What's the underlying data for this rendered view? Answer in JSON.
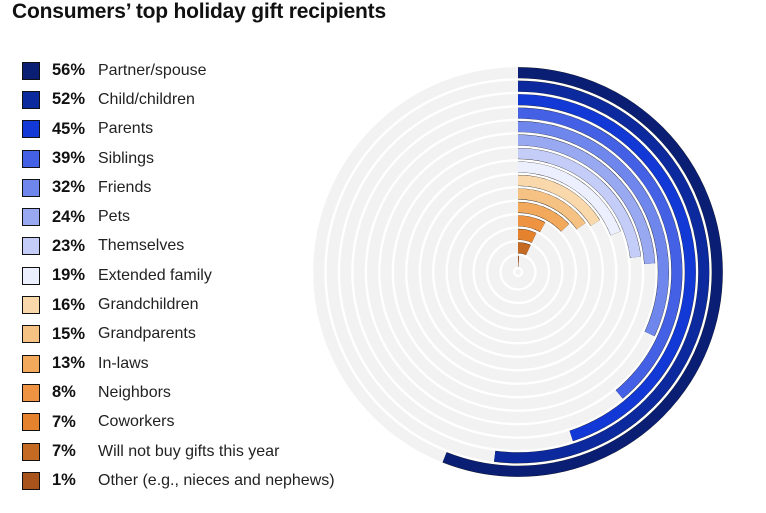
{
  "chart_data": {
    "type": "radial-bar",
    "title": "Consumers’ top holiday gift recipients",
    "max_value": 100,
    "series": [
      {
        "label": "Partner/spouse",
        "value": 56,
        "value_label": "56%",
        "color": "#0a1f73"
      },
      {
        "label": "Child/children",
        "value": 52,
        "value_label": "52%",
        "color": "#0c2a9e"
      },
      {
        "label": "Parents",
        "value": 45,
        "value_label": "45%",
        "color": "#1238d6"
      },
      {
        "label": "Siblings",
        "value": 39,
        "value_label": "39%",
        "color": "#4461e6"
      },
      {
        "label": "Friends",
        "value": 32,
        "value_label": "32%",
        "color": "#6f87ec"
      },
      {
        "label": "Pets",
        "value": 24,
        "value_label": "24%",
        "color": "#98a9f1"
      },
      {
        "label": "Themselves",
        "value": 23,
        "value_label": "23%",
        "color": "#c3cdf7"
      },
      {
        "label": "Extended family",
        "value": 19,
        "value_label": "19%",
        "color": "#eceffd"
      },
      {
        "label": "Grandchildren",
        "value": 16,
        "value_label": "16%",
        "color": "#f9d9ab"
      },
      {
        "label": "Grandparents",
        "value": 15,
        "value_label": "15%",
        "color": "#f5c284"
      },
      {
        "label": "In-laws",
        "value": 13,
        "value_label": "13%",
        "color": "#f3a95c"
      },
      {
        "label": "Neighbors",
        "value": 8,
        "value_label": "8%",
        "color": "#ee9342"
      },
      {
        "label": "Coworkers",
        "value": 7,
        "value_label": "7%",
        "color": "#e5822e"
      },
      {
        "label": "Will not buy gifts this year",
        "value": 7,
        "value_label": "7%",
        "color": "#c46a23"
      },
      {
        "label": "Other (e.g., nieces and nephews)",
        "value": 1,
        "value_label": "1%",
        "color": "#a8531c"
      }
    ]
  }
}
